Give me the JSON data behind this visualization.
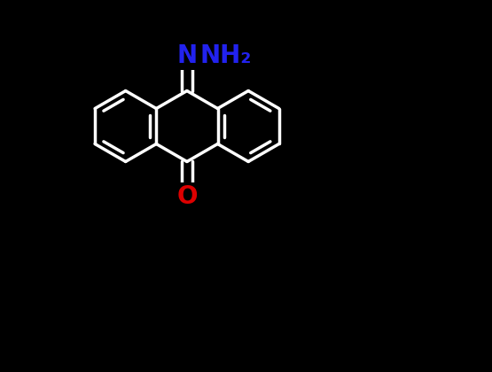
{
  "background_color": "#000000",
  "bond_color": "#ffffff",
  "N_color": "#2222ee",
  "O_color": "#dd0000",
  "bond_width": 2.5,
  "fig_width": 5.55,
  "fig_height": 4.2,
  "dpi": 100,
  "N_label": "N",
  "NH2_label": "NH₂",
  "O_label": "O",
  "N_fontsize": 20,
  "NH2_fontsize": 20,
  "O_fontsize": 20,
  "bl": 0.072,
  "mx": 0.38,
  "my": 0.5
}
